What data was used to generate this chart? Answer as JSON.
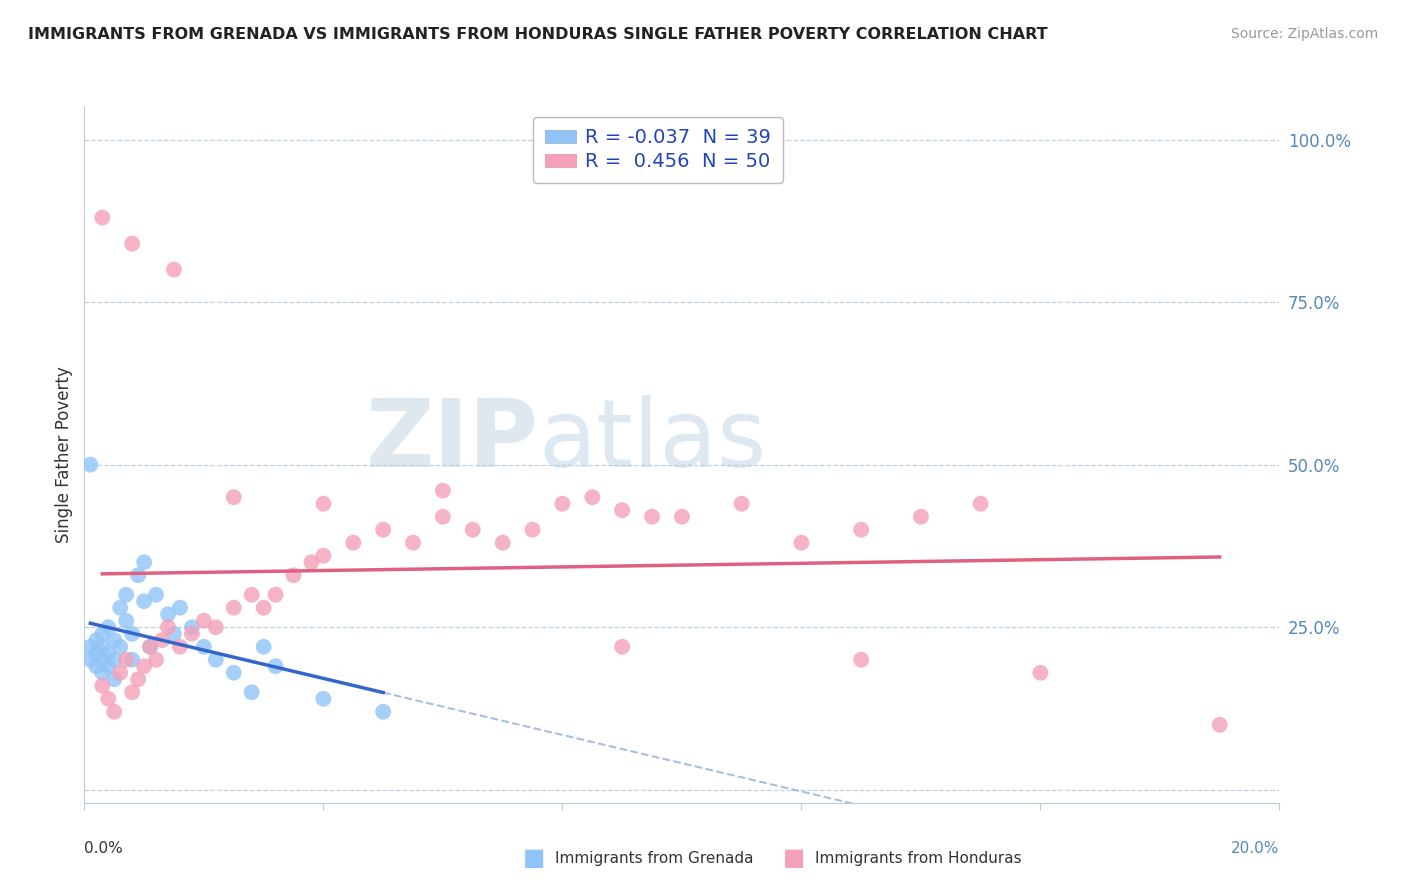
{
  "title": "IMMIGRANTS FROM GRENADA VS IMMIGRANTS FROM HONDURAS SINGLE FATHER POVERTY CORRELATION CHART",
  "source": "Source: ZipAtlas.com",
  "ylabel": "Single Father Poverty",
  "xlim": [
    0.0,
    0.2
  ],
  "ylim": [
    -0.02,
    1.05
  ],
  "grenada_R": -0.037,
  "grenada_N": 39,
  "honduras_R": 0.456,
  "honduras_N": 50,
  "grenada_color": "#90C4F8",
  "honduras_color": "#F4A0B8",
  "grenada_line_color": "#3366CC",
  "honduras_line_color": "#E06080",
  "dashed_color": "#88AADD",
  "grid_color": "#BBCCDD",
  "tick_color": "#5588BB",
  "title_color": "#222222",
  "source_color": "#999999",
  "watermark_color": "#C5D8E8",
  "grenada_x": [
    0.001,
    0.001,
    0.002,
    0.002,
    0.002,
    0.003,
    0.003,
    0.003,
    0.003,
    0.004,
    0.004,
    0.004,
    0.005,
    0.005,
    0.005,
    0.006,
    0.006,
    0.007,
    0.007,
    0.008,
    0.008,
    0.009,
    0.01,
    0.01,
    0.011,
    0.012,
    0.014,
    0.015,
    0.016,
    0.018,
    0.02,
    0.022,
    0.025,
    0.028,
    0.03,
    0.032,
    0.04,
    0.05,
    0.001
  ],
  "grenada_y": [
    0.22,
    0.2,
    0.21,
    0.19,
    0.23,
    0.24,
    0.2,
    0.18,
    0.22,
    0.21,
    0.25,
    0.19,
    0.23,
    0.2,
    0.17,
    0.28,
    0.22,
    0.26,
    0.3,
    0.24,
    0.2,
    0.33,
    0.35,
    0.29,
    0.22,
    0.3,
    0.27,
    0.24,
    0.28,
    0.25,
    0.22,
    0.2,
    0.18,
    0.15,
    0.22,
    0.19,
    0.14,
    0.12,
    0.5
  ],
  "honduras_x": [
    0.003,
    0.004,
    0.005,
    0.006,
    0.007,
    0.008,
    0.009,
    0.01,
    0.011,
    0.012,
    0.013,
    0.014,
    0.016,
    0.018,
    0.02,
    0.022,
    0.025,
    0.028,
    0.03,
    0.032,
    0.035,
    0.038,
    0.04,
    0.045,
    0.05,
    0.055,
    0.06,
    0.065,
    0.07,
    0.075,
    0.08,
    0.085,
    0.09,
    0.095,
    0.1,
    0.11,
    0.12,
    0.13,
    0.14,
    0.15,
    0.003,
    0.008,
    0.015,
    0.025,
    0.04,
    0.06,
    0.09,
    0.13,
    0.16,
    0.19
  ],
  "honduras_y": [
    0.16,
    0.14,
    0.12,
    0.18,
    0.2,
    0.15,
    0.17,
    0.19,
    0.22,
    0.2,
    0.23,
    0.25,
    0.22,
    0.24,
    0.26,
    0.25,
    0.28,
    0.3,
    0.28,
    0.3,
    0.33,
    0.35,
    0.36,
    0.38,
    0.4,
    0.38,
    0.42,
    0.4,
    0.38,
    0.4,
    0.44,
    0.45,
    0.43,
    0.42,
    0.42,
    0.44,
    0.38,
    0.4,
    0.42,
    0.44,
    0.88,
    0.84,
    0.8,
    0.45,
    0.44,
    0.46,
    0.22,
    0.2,
    0.18,
    0.1
  ]
}
